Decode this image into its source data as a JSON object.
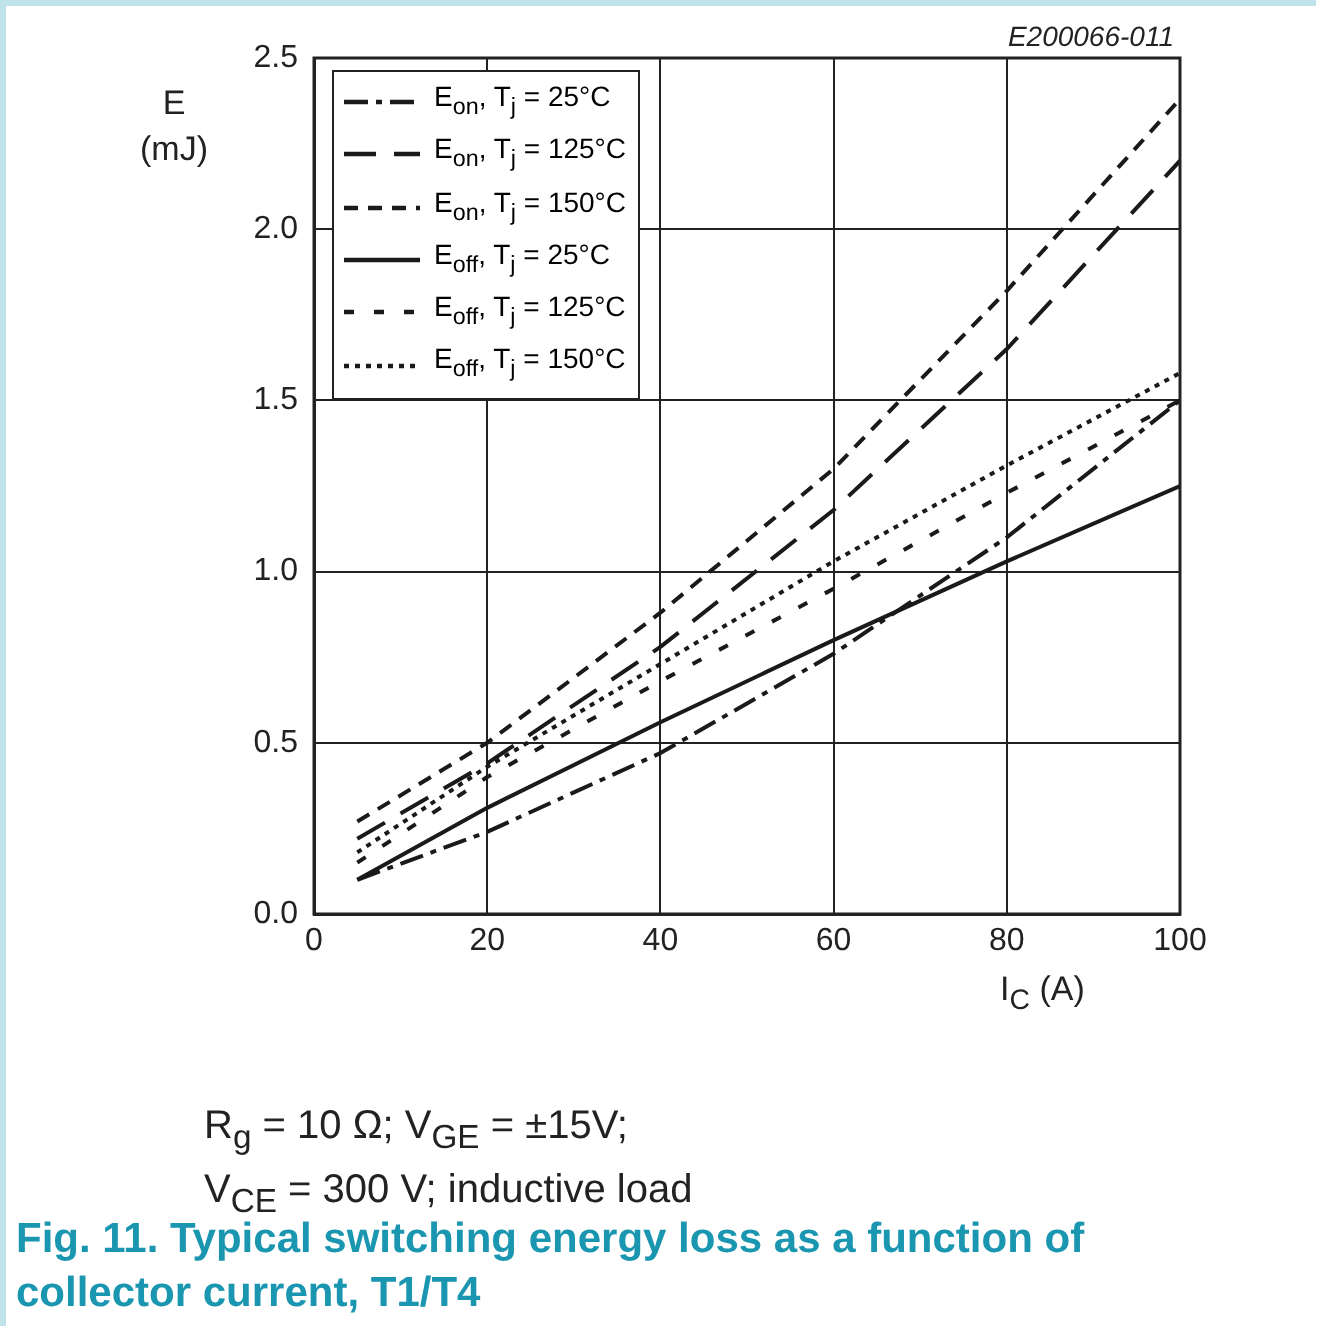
{
  "chart_data": {
    "type": "line",
    "title": "Fig. 11. Typical switching energy loss as a function of collector current, T1/T4",
    "xlabel": "I$_{C}$ (A)",
    "ylabel": "E (mJ)",
    "annotations": [
      "E200066-011",
      "R$_{g}$ = 10 Ω; V$_{GE}$ = ±15V;",
      "V$_{CE}$ = 300 V; inductive load"
    ],
    "x": [
      5,
      20,
      40,
      60,
      80,
      100
    ],
    "series": [
      {
        "name": "E$_{on}$, T$_{j}$ = 25°C",
        "color": "#1a1a1a",
        "line_style": "dashdot",
        "values": [
          0.1,
          0.24,
          0.47,
          0.76,
          1.1,
          1.5
        ]
      },
      {
        "name": "E$_{on}$, T$_{j}$ = 125°C",
        "color": "#1a1a1a",
        "line_style": "longdash",
        "values": [
          0.22,
          0.44,
          0.78,
          1.18,
          1.65,
          2.2
        ]
      },
      {
        "name": "E$_{on}$, T$_{j}$ = 150°C",
        "color": "#1a1a1a",
        "line_style": "dashed",
        "values": [
          0.27,
          0.5,
          0.88,
          1.3,
          1.82,
          2.38
        ]
      },
      {
        "name": "E$_{off}$, T$_{j}$ = 25°C",
        "color": "#1a1a1a",
        "line_style": "solid",
        "values": [
          0.1,
          0.31,
          0.56,
          0.8,
          1.03,
          1.25
        ]
      },
      {
        "name": "E$_{off}$, T$_{j}$ = 125°C",
        "color": "#1a1a1a",
        "line_style": "spaced",
        "values": [
          0.15,
          0.4,
          0.68,
          0.95,
          1.23,
          1.5
        ]
      },
      {
        "name": "E$_{off}$, T$_{j}$ = 150°C",
        "color": "#1a1a1a",
        "line_style": "dotted",
        "values": [
          0.18,
          0.43,
          0.73,
          1.03,
          1.31,
          1.58
        ]
      }
    ],
    "xlim": [
      0,
      100
    ],
    "xticks": [
      0,
      20,
      40,
      60,
      80,
      100
    ],
    "ylim": [
      0,
      2.5
    ],
    "yticks": [
      {
        "value": 0,
        "label": "0.0"
      },
      0.5,
      {
        "value": 1,
        "label": "1.0"
      },
      1.5,
      {
        "value": 2,
        "label": "2.0"
      },
      2.5
    ],
    "grid": true,
    "legend": "top left",
    "marker": "none"
  }
}
